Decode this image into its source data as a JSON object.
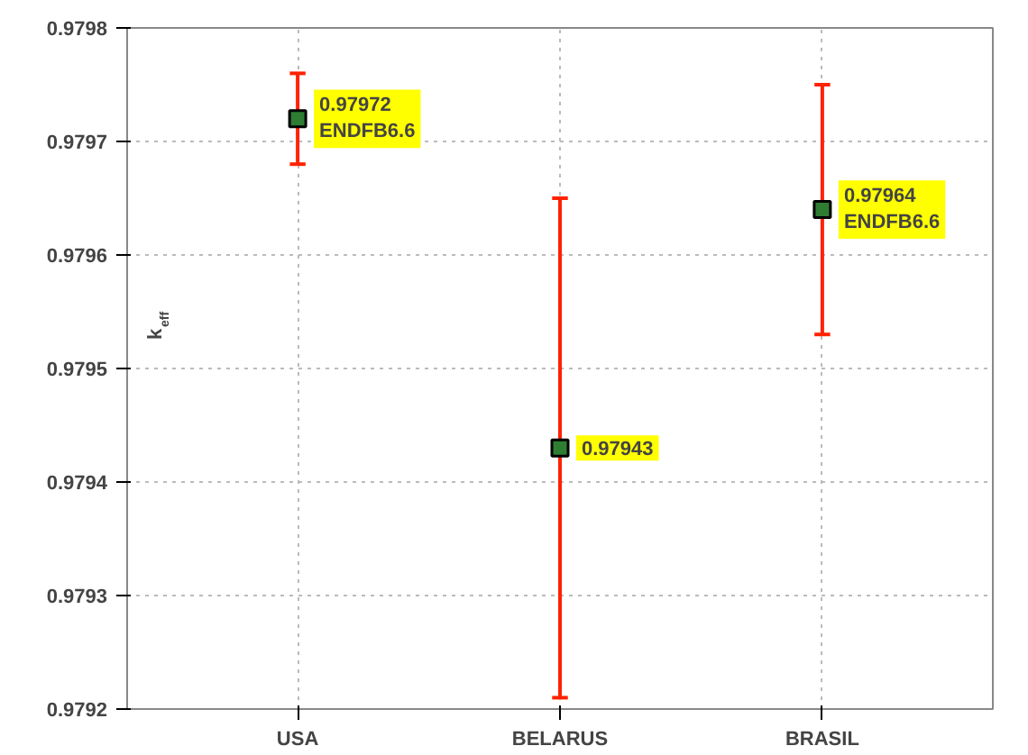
{
  "chart_data": {
    "type": "scatter",
    "ylabel": "k$_{eff}$",
    "categories": [
      "USA",
      "BELARUS",
      "BRASIL"
    ],
    "series": [
      {
        "color": "#2e7d32",
        "values": [
          0.97972,
          0.97943,
          0.97964
        ],
        "errors": [
          [
            0.97968,
            0.97976
          ],
          [
            0.97921,
            0.97965
          ],
          [
            0.97953,
            0.97975
          ]
        ],
        "value_labels": [
          "0.97972\nENDFB6.6",
          "0.97943",
          "0.97964\nENDFB6.6"
        ]
      }
    ],
    "marker": "square",
    "ylim": [
      0.9792,
      0.9798
    ],
    "yticks": [
      0.9792,
      0.9793,
      0.9794,
      0.9795,
      0.9796,
      0.9797,
      0.9798
    ],
    "grid": true
  }
}
